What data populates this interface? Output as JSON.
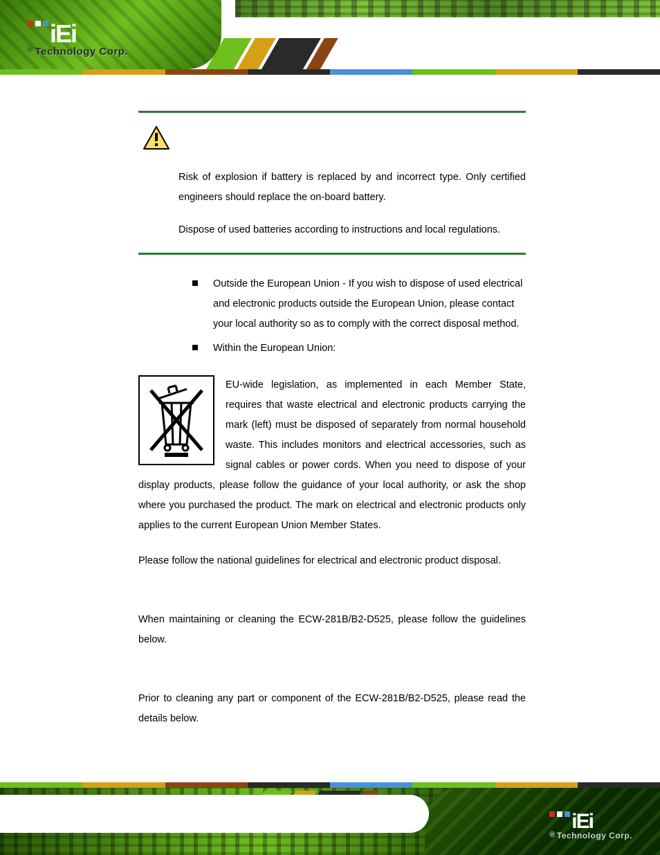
{
  "brand": {
    "name": "iEi",
    "tagline": "Technology Corp.",
    "registered": "®",
    "dot_colors": [
      "#d52b1e",
      "#ffffff",
      "#4a90d9"
    ]
  },
  "color_bar": [
    "#6fbf1f",
    "#d4a017",
    "#8b4513",
    "#2a2a2a",
    "#4a90d9",
    "#6fbf1f",
    "#d4a017",
    "#2a2a2a"
  ],
  "warning": {
    "icon_stroke": "#000000",
    "icon_fill": "#ffe066",
    "p1": "Risk of explosion if battery is replaced by and incorrect type. Only certified engineers should replace the on-board battery.",
    "p2": "Dispose of used batteries according to instructions and local regulations."
  },
  "hr_color": "#2d7a3a",
  "bullets": [
    "Outside the European Union - If you wish to dispose of used electrical and electronic products outside the European Union, please contact your local authority so as to comply with the correct disposal method.",
    "Within the European Union:"
  ],
  "weee": {
    "text": "EU-wide legislation, as implemented in each Member State, requires that waste electrical and electronic products carrying the mark (left) must be disposed of separately from normal household waste. This includes monitors and electrical accessories, such as signal cables or power cords. When you need to dispose of your display products, please follow the guidance of your local authority, or ask the shop where you purchased the product. The mark on electrical and electronic products only applies to the current European Union Member States."
  },
  "paragraphs": {
    "p1": "Please follow the national guidelines for electrical and electronic product disposal.",
    "p2": "When maintaining or cleaning the ECW-281B/B2-D525, please follow the guidelines below.",
    "p3": "Prior to cleaning any part or component of the ECW-281B/B2-D525, please read the details below."
  },
  "fonts": {
    "body_size_pt": 11,
    "line_height": 2.0
  }
}
